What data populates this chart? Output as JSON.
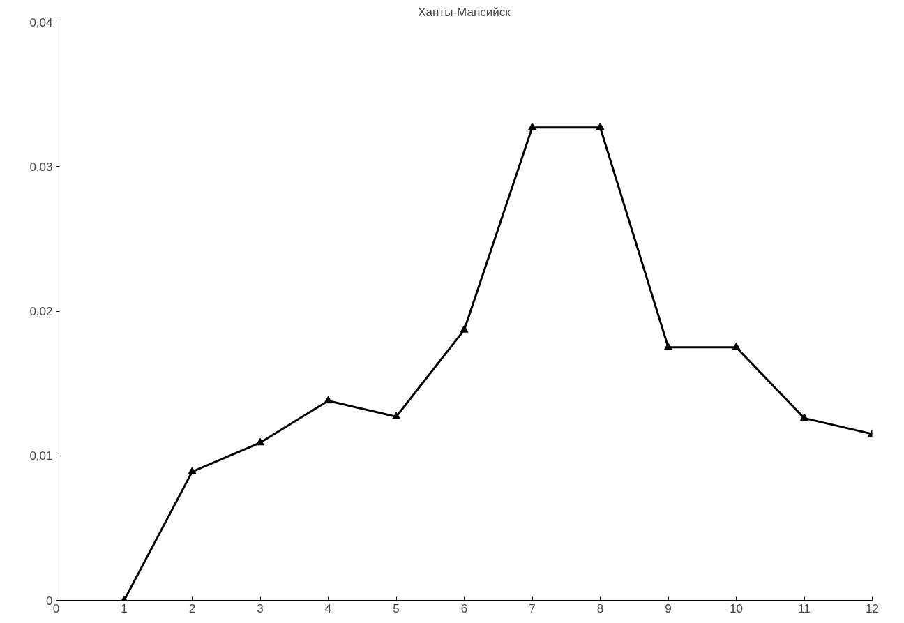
{
  "chart_data": {
    "type": "line",
    "title": "Ханты-Мансийск",
    "x": [
      1,
      2,
      3,
      4,
      5,
      6,
      7,
      8,
      9,
      10,
      11,
      12
    ],
    "series": [
      {
        "color": "#000000",
        "values": [
          0,
          0.0089,
          0.0109,
          0.0138,
          0.0127,
          0.0187,
          0.0327,
          0.0327,
          0.0175,
          0.0175,
          0.0126,
          0.0115
        ]
      }
    ],
    "xlim": [
      0,
      12
    ],
    "ylim": [
      0,
      0.04
    ],
    "xticks": [
      0,
      1,
      2,
      3,
      4,
      5,
      6,
      7,
      8,
      9,
      10,
      11,
      12
    ],
    "yticks": [
      {
        "value": 0,
        "label": "0"
      },
      {
        "value": 0.01,
        "label": "0,01"
      },
      {
        "value": 0.02,
        "label": "0,02"
      },
      {
        "value": 0.03,
        "label": "0,03"
      },
      {
        "value": 0.04,
        "label": "0,04"
      }
    ],
    "grid": false,
    "marker": "triangle",
    "line_style": "solid"
  }
}
